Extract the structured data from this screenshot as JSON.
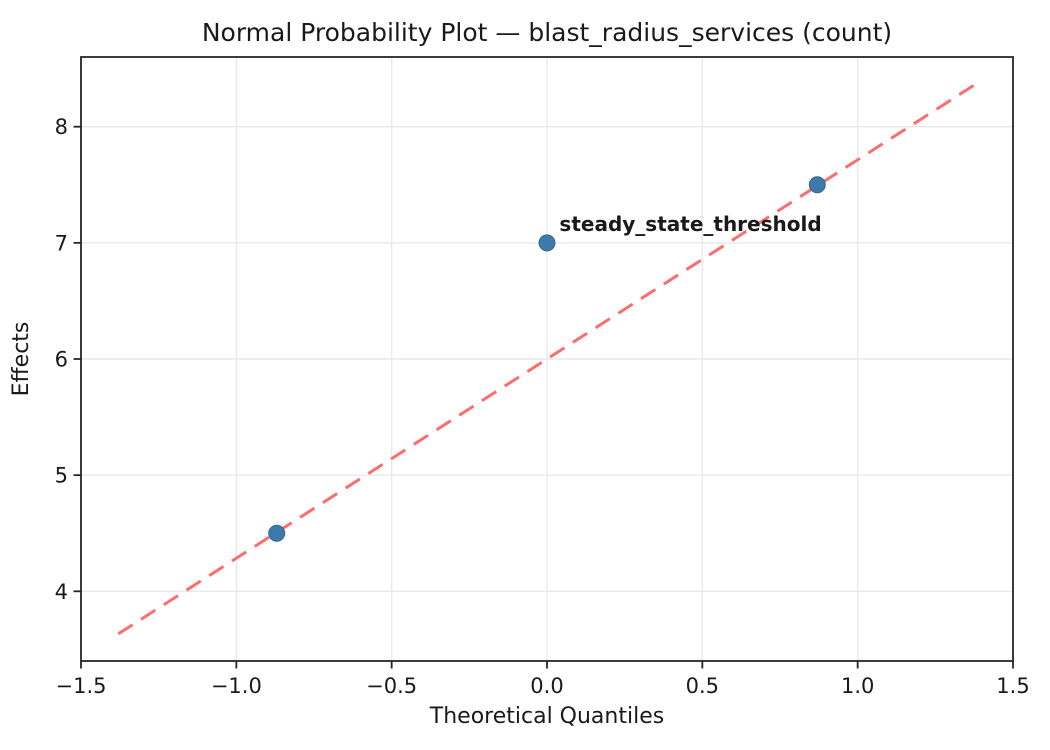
{
  "chart_data": {
    "type": "scatter",
    "title": "Normal Probability Plot — blast_radius_services (count)",
    "xlabel": "Theoretical Quantiles",
    "ylabel": "Effects",
    "xlim": [
      -1.5,
      1.5
    ],
    "ylim": [
      3.4,
      8.6
    ],
    "grid": true,
    "legend": false,
    "x_ticks": {
      "values": [
        -1.5,
        -1.0,
        -0.5,
        0.0,
        0.5,
        1.0,
        1.5
      ],
      "labels": [
        "−1.5",
        "−1.0",
        "−0.5",
        "0.0",
        "0.5",
        "1.0",
        "1.5"
      ]
    },
    "y_ticks": {
      "values": [
        4,
        5,
        6,
        7,
        8
      ],
      "labels": [
        "4",
        "5",
        "6",
        "7",
        "8"
      ]
    },
    "points": [
      {
        "x": -0.87,
        "y": 4.5
      },
      {
        "x": 0.0,
        "y": 7.0
      },
      {
        "x": 0.87,
        "y": 7.5
      }
    ],
    "fit_line": {
      "style": "dashed",
      "slope": 1.715,
      "intercept": 6.0,
      "x_start": -1.38,
      "x_end": 1.38
    },
    "annotation": {
      "label": "steady_state_threshold",
      "x": 0.04,
      "y": 7.1
    },
    "colors": {
      "marker": "#3d79ab",
      "marker_edge": "#35688f",
      "fit_line": "#fa6e6e",
      "annotation": "#dd0000",
      "grid": "#e9e9e9",
      "spine": "#262626",
      "text": "#1a1a1a"
    }
  }
}
